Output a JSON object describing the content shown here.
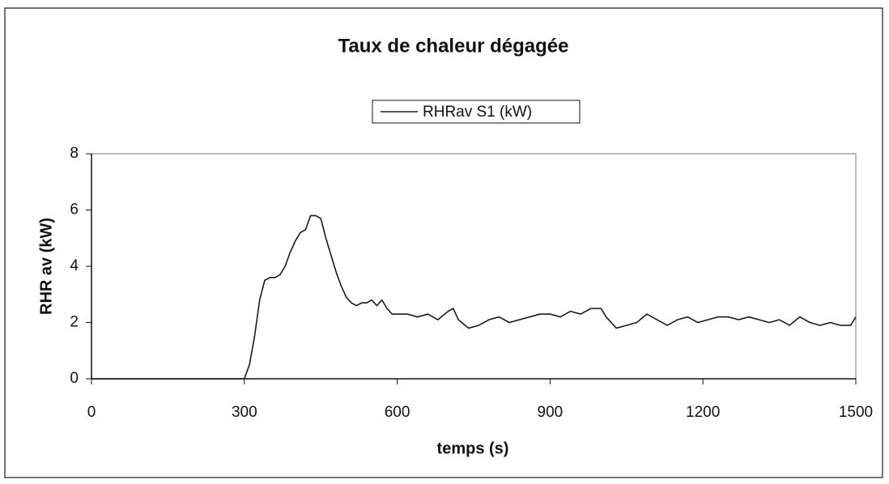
{
  "chart_data": {
    "type": "line",
    "title": "Taux de chaleur dégagée",
    "x_label": "temps (s)",
    "y_label": "RHR av (kW)",
    "x": [
      0,
      300,
      310,
      320,
      330,
      340,
      350,
      360,
      370,
      380,
      390,
      400,
      410,
      420,
      430,
      440,
      450,
      460,
      470,
      480,
      490,
      500,
      510,
      520,
      530,
      540,
      550,
      560,
      570,
      580,
      590,
      600,
      620,
      640,
      660,
      680,
      700,
      710,
      720,
      740,
      760,
      780,
      800,
      820,
      840,
      860,
      880,
      900,
      920,
      940,
      960,
      980,
      1000,
      1010,
      1030,
      1050,
      1070,
      1090,
      1110,
      1130,
      1150,
      1170,
      1190,
      1210,
      1230,
      1250,
      1270,
      1290,
      1310,
      1330,
      1350,
      1370,
      1390,
      1410,
      1430,
      1450,
      1470,
      1490,
      1500
    ],
    "series": [
      {
        "name": "RHRav S1 (kW)",
        "color": "#1a1a1a",
        "values": [
          0,
          0,
          0.5,
          1.5,
          2.8,
          3.5,
          3.6,
          3.6,
          3.7,
          4.0,
          4.5,
          4.9,
          5.2,
          5.3,
          5.8,
          5.8,
          5.7,
          5.0,
          4.4,
          3.8,
          3.3,
          2.9,
          2.7,
          2.6,
          2.7,
          2.7,
          2.8,
          2.6,
          2.8,
          2.5,
          2.3,
          2.3,
          2.3,
          2.2,
          2.3,
          2.1,
          2.4,
          2.5,
          2.1,
          1.8,
          1.9,
          2.1,
          2.2,
          2.0,
          2.1,
          2.2,
          2.3,
          2.3,
          2.2,
          2.4,
          2.3,
          2.5,
          2.5,
          2.2,
          1.8,
          1.9,
          2.0,
          2.3,
          2.1,
          1.9,
          2.1,
          2.2,
          2.0,
          2.1,
          2.2,
          2.2,
          2.1,
          2.2,
          2.1,
          2.0,
          2.1,
          1.9,
          2.2,
          2.0,
          1.9,
          2.0,
          1.9,
          1.9,
          2.2
        ]
      }
    ],
    "xlim": [
      0,
      1500
    ],
    "xticks": [
      0,
      300,
      600,
      900,
      1200,
      1500
    ],
    "ylim": [
      0,
      8
    ],
    "yticks": [
      0,
      2,
      4,
      6,
      8
    ]
  }
}
